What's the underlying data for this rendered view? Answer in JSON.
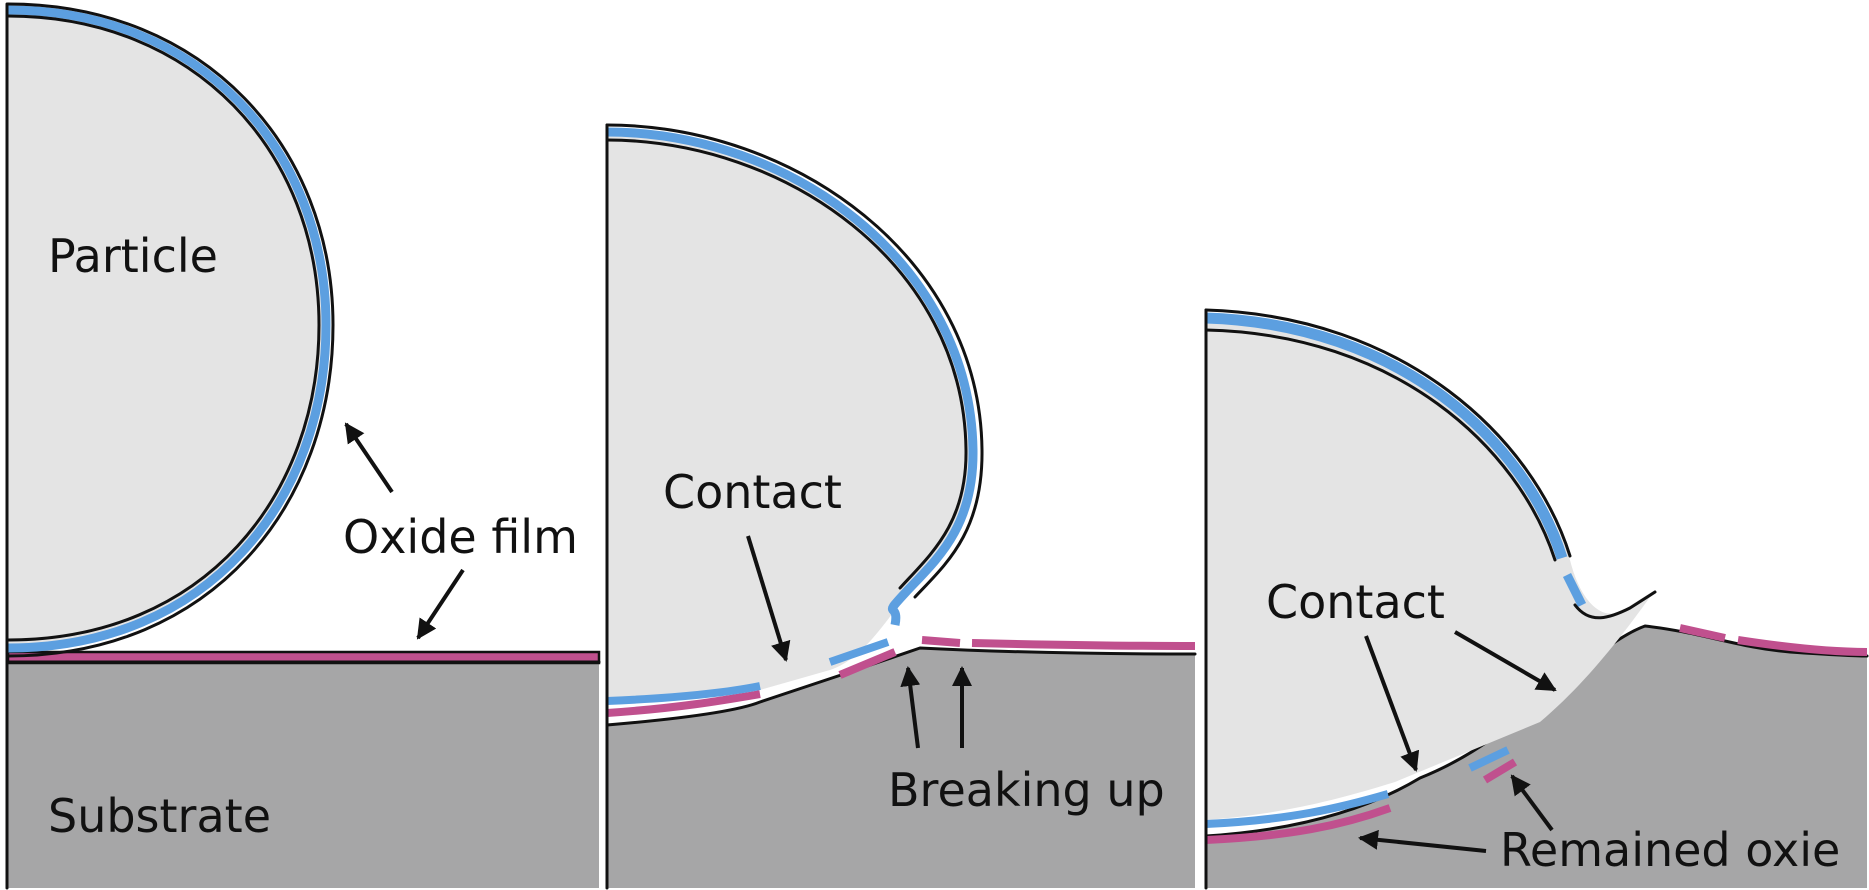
{
  "colors": {
    "particle": "#e4e4e4",
    "substrate": "#a6a6a7",
    "particle_oxide": "#5c9fe0",
    "substrate_oxide": "#c0508e",
    "outline": "#111111"
  },
  "panels": [
    {
      "labels": {
        "particle": "Particle",
        "oxide_film": "Oxide film",
        "substrate": "Substrate"
      }
    },
    {
      "labels": {
        "contact": "Contact",
        "breaking_up": "Breaking up"
      }
    },
    {
      "labels": {
        "contact": "Contact",
        "remained_oxide": "Remained oxie"
      }
    }
  ]
}
